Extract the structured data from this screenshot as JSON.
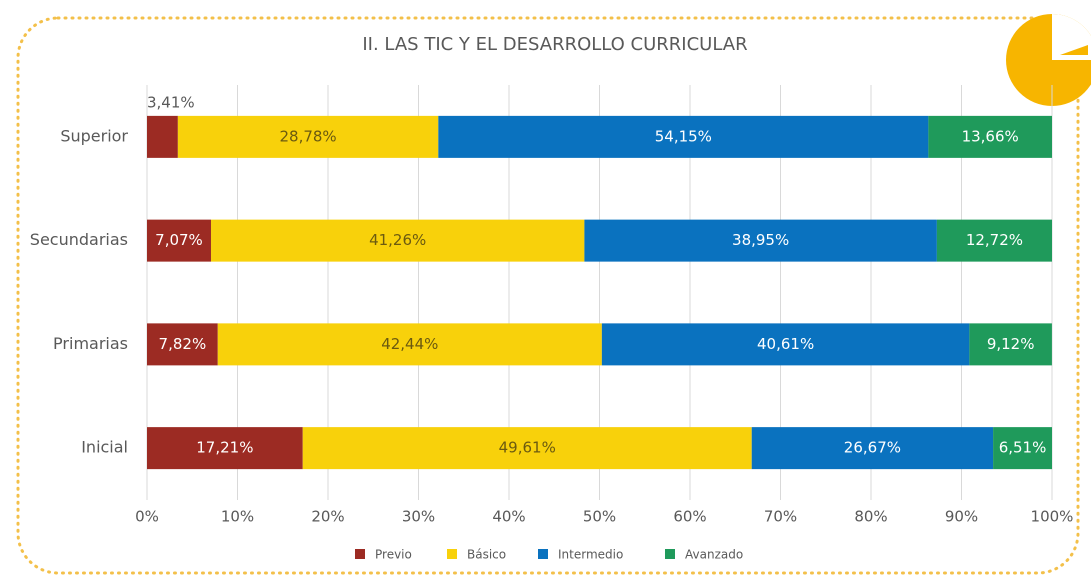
{
  "chart_data": {
    "type": "stacked_barh",
    "title": "II. LAS TIC Y EL DESARROLLO CURRICULAR",
    "categories": [
      "Superior",
      "Secundarias",
      "Primarias",
      "Inicial"
    ],
    "series": [
      {
        "name": "Previo",
        "color": "#9c2b23",
        "values": [
          3.41,
          7.07,
          7.82,
          17.21
        ],
        "value_labels": [
          "3,41%",
          "7,07%",
          "7,82%",
          "17,21%"
        ]
      },
      {
        "name": "Básico",
        "color": "#f8d10b",
        "values": [
          28.78,
          41.26,
          42.44,
          49.61
        ],
        "value_labels": [
          "28,78%",
          "41,26%",
          "42,44%",
          "49,61%"
        ]
      },
      {
        "name": "Intermedio",
        "color": "#0a72bf",
        "values": [
          54.15,
          38.95,
          40.61,
          26.67
        ],
        "value_labels": [
          "54,15%",
          "38,95%",
          "40,61%",
          "26,67%"
        ]
      },
      {
        "name": "Avanzado",
        "color": "#1f9a5b",
        "values": [
          13.66,
          12.72,
          9.12,
          6.51
        ],
        "value_labels": [
          "13,66%",
          "12,72%",
          "9,12%",
          "6,51%"
        ]
      }
    ],
    "xlim": [
      0,
      100
    ],
    "xticks": [
      {
        "value": 0,
        "label": "0%"
      },
      {
        "value": 10,
        "label": "10%"
      },
      {
        "value": 20,
        "label": "20%"
      },
      {
        "value": 30,
        "label": "30%"
      },
      {
        "value": 40,
        "label": "40%"
      },
      {
        "value": 50,
        "label": "50%"
      },
      {
        "value": 60,
        "label": "60%"
      },
      {
        "value": 70,
        "label": "70%"
      },
      {
        "value": 80,
        "label": "80%"
      },
      {
        "value": 90,
        "label": "90%"
      },
      {
        "value": 100,
        "label": "100%"
      }
    ],
    "grid": true,
    "legend": "bottom"
  }
}
